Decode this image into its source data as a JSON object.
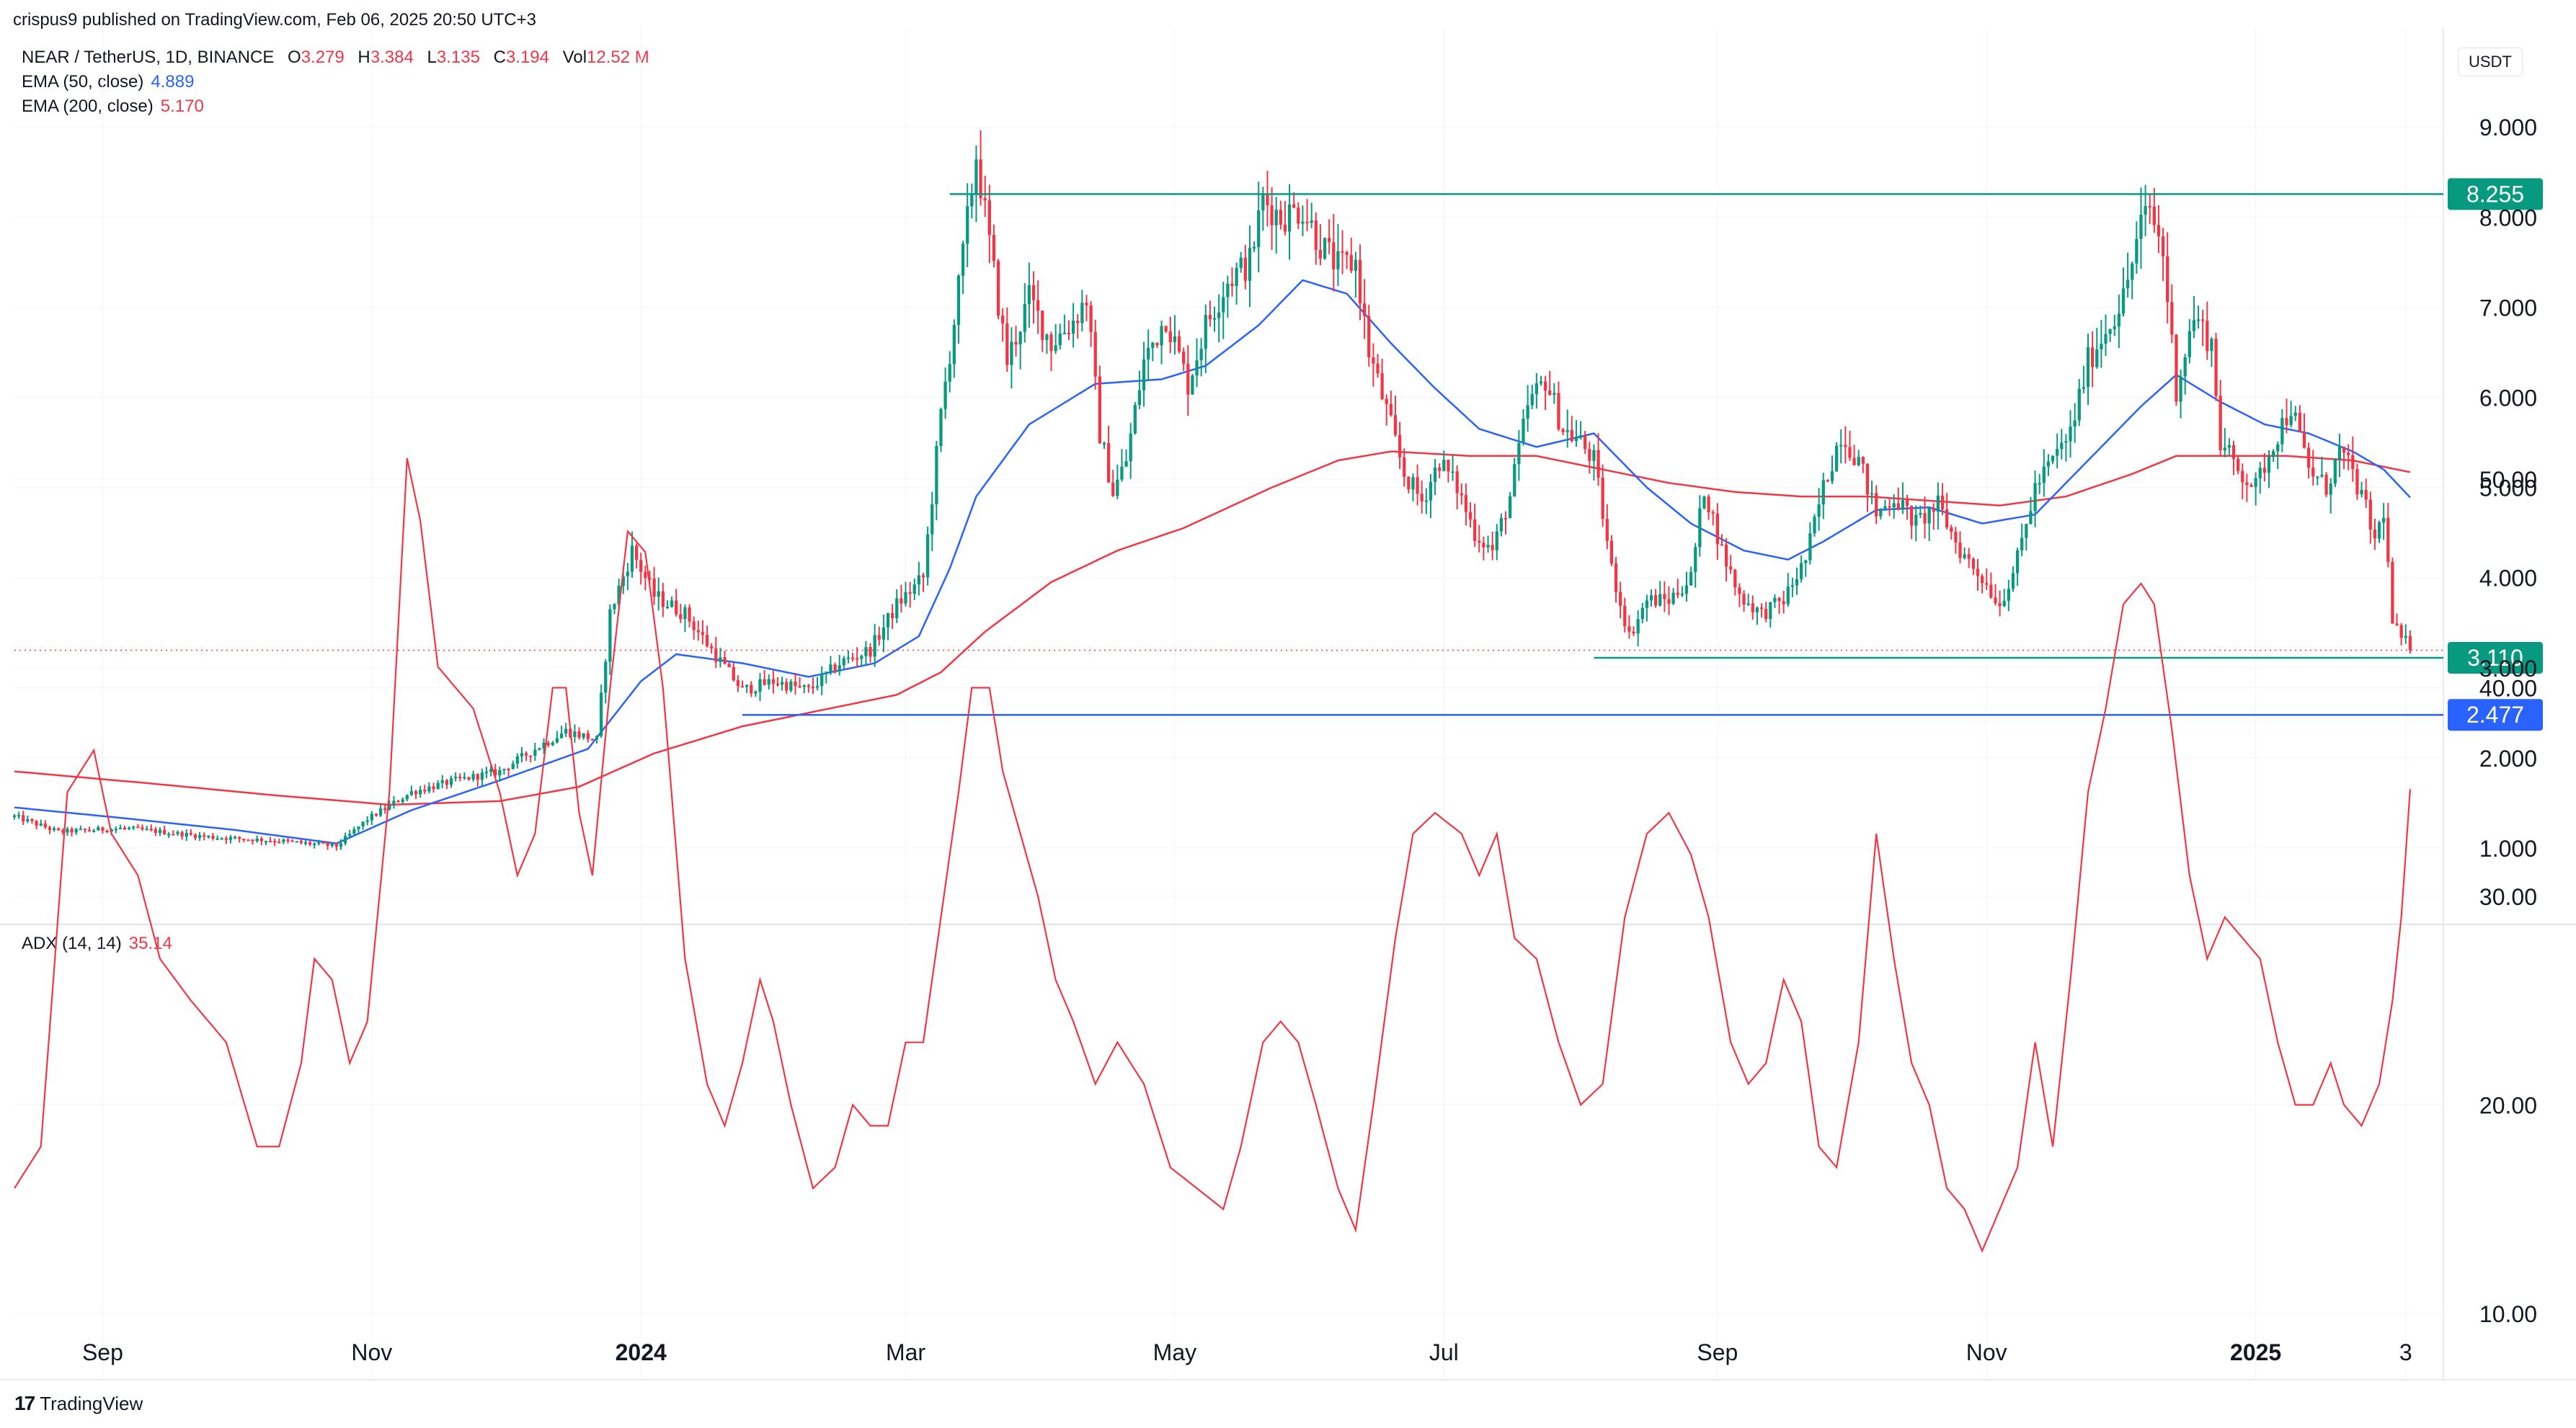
{
  "header": {
    "publisher": "crispus9 published on TradingView.com, Feb 06, 2025 20:50 UTC+3"
  },
  "legend": {
    "symbol": "NEAR / TetherUS, 1D, BINANCE",
    "open_label": "O",
    "open": "3.279",
    "high_label": "H",
    "high": "3.384",
    "low_label": "L",
    "low": "3.135",
    "close_label": "C",
    "close": "3.194",
    "vol_label": "Vol",
    "vol": "12.52 M",
    "ema50_name": "EMA (50, close)",
    "ema50_value": "4.889",
    "ema200_name": "EMA (200, close)",
    "ema200_value": "5.170",
    "adx_name": "ADX (14, 14)",
    "adx_value": "35.14"
  },
  "currency": "USDT",
  "footer": {
    "logo": "17",
    "brand": "TradingView"
  },
  "colors": {
    "up": "#089981",
    "down": "#f23645",
    "ema50": "#2962ff",
    "ema200": "#f23645",
    "adx": "#f23645",
    "resistance": "#089981",
    "support_blue": "#2962ff",
    "grid": "#f0f3fa"
  },
  "chart_data": [
    {
      "type": "candlestick",
      "title": "NEAR / TetherUS, 1D, BINANCE",
      "ylabel": "USDT",
      "ylim": [
        0.2,
        9.8
      ],
      "y_ticks": [
        {
          "value": 1.0,
          "label": "1.000"
        },
        {
          "value": 2.0,
          "label": "2.000"
        },
        {
          "value": 3.0,
          "label": "3.000"
        },
        {
          "value": 4.0,
          "label": "4.000"
        },
        {
          "value": 5.0,
          "label": "5.000"
        },
        {
          "value": 6.0,
          "label": "6.000"
        },
        {
          "value": 7.0,
          "label": "7.000"
        },
        {
          "value": 8.0,
          "label": "8.000"
        },
        {
          "value": 9.0,
          "label": "9.000"
        }
      ],
      "x_ticks": [
        {
          "day": 20,
          "label": "Sep"
        },
        {
          "day": 81,
          "label": "Nov"
        },
        {
          "day": 142,
          "label": "2024",
          "bold": true
        },
        {
          "day": 202,
          "label": "Mar"
        },
        {
          "day": 263,
          "label": "May"
        },
        {
          "day": 324,
          "label": "Jul"
        },
        {
          "day": 386,
          "label": "Sep"
        },
        {
          "day": 447,
          "label": "Nov"
        },
        {
          "day": 508,
          "label": "2025",
          "bold": true
        },
        {
          "day": 542,
          "label": "3"
        }
      ],
      "x_range_days": [
        0,
        544
      ],
      "price_anchors": [
        [
          0,
          1.35
        ],
        [
          10,
          1.18
        ],
        [
          25,
          1.22
        ],
        [
          45,
          1.12
        ],
        [
          60,
          1.08
        ],
        [
          73,
          1.02
        ],
        [
          80,
          1.32
        ],
        [
          90,
          1.62
        ],
        [
          100,
          1.75
        ],
        [
          110,
          1.85
        ],
        [
          118,
          2.1
        ],
        [
          125,
          2.3
        ],
        [
          132,
          2.2
        ],
        [
          135,
          3.6
        ],
        [
          140,
          4.3
        ],
        [
          145,
          3.8
        ],
        [
          152,
          3.6
        ],
        [
          158,
          3.2
        ],
        [
          165,
          2.75
        ],
        [
          172,
          2.85
        ],
        [
          180,
          2.75
        ],
        [
          187,
          3.05
        ],
        [
          194,
          3.2
        ],
        [
          200,
          3.7
        ],
        [
          206,
          4.0
        ],
        [
          210,
          5.8
        ],
        [
          214,
          7.2
        ],
        [
          218,
          8.7
        ],
        [
          221,
          7.7
        ],
        [
          225,
          6.4
        ],
        [
          230,
          7.1
        ],
        [
          235,
          6.6
        ],
        [
          240,
          6.85
        ],
        [
          243,
          7.1
        ],
        [
          246,
          5.6
        ],
        [
          249,
          4.95
        ],
        [
          252,
          5.3
        ],
        [
          256,
          6.4
        ],
        [
          261,
          6.9
        ],
        [
          266,
          6.15
        ],
        [
          270,
          6.8
        ],
        [
          275,
          7.3
        ],
        [
          280,
          7.5
        ],
        [
          283,
          8.2
        ],
        [
          287,
          8.0
        ],
        [
          292,
          8.1
        ],
        [
          296,
          7.7
        ],
        [
          300,
          7.45
        ],
        [
          304,
          7.5
        ],
        [
          307,
          6.5
        ],
        [
          311,
          5.85
        ],
        [
          315,
          5.15
        ],
        [
          319,
          4.85
        ],
        [
          323,
          5.3
        ],
        [
          327,
          5.0
        ],
        [
          331,
          4.5
        ],
        [
          335,
          4.3
        ],
        [
          339,
          4.9
        ],
        [
          343,
          5.9
        ],
        [
          347,
          6.2
        ],
        [
          351,
          5.65
        ],
        [
          355,
          5.5
        ],
        [
          358,
          5.3
        ],
        [
          362,
          4.1
        ],
        [
          366,
          3.35
        ],
        [
          370,
          3.75
        ],
        [
          375,
          3.75
        ],
        [
          380,
          4.0
        ],
        [
          383,
          5.0
        ],
        [
          387,
          4.3
        ],
        [
          391,
          3.8
        ],
        [
          396,
          3.6
        ],
        [
          401,
          3.75
        ],
        [
          406,
          4.2
        ],
        [
          410,
          5.0
        ],
        [
          414,
          5.6
        ],
        [
          418,
          5.3
        ],
        [
          422,
          4.7
        ],
        [
          426,
          4.9
        ],
        [
          431,
          4.6
        ],
        [
          436,
          4.8
        ],
        [
          441,
          4.3
        ],
        [
          446,
          4.0
        ],
        [
          450,
          3.7
        ],
        [
          454,
          4.2
        ],
        [
          458,
          5.0
        ],
        [
          462,
          5.3
        ],
        [
          466,
          5.6
        ],
        [
          470,
          6.4
        ],
        [
          474,
          6.75
        ],
        [
          478,
          7.1
        ],
        [
          482,
          7.9
        ],
        [
          484,
          8.1
        ],
        [
          487,
          7.6
        ],
        [
          490,
          6.1
        ],
        [
          494,
          6.9
        ],
        [
          498,
          6.6
        ],
        [
          500,
          5.5
        ],
        [
          504,
          5.2
        ],
        [
          508,
          5.0
        ],
        [
          512,
          5.5
        ],
        [
          516,
          5.9
        ],
        [
          520,
          5.2
        ],
        [
          524,
          5.0
        ],
        [
          527,
          5.4
        ],
        [
          530,
          5.15
        ],
        [
          533,
          4.75
        ],
        [
          535,
          4.4
        ],
        [
          537,
          4.75
        ],
        [
          539,
          3.5
        ],
        [
          541,
          3.3
        ],
        [
          542,
          3.279
        ],
        [
          543,
          3.194
        ]
      ],
      "last_close": 3.194,
      "ema50_anchors": [
        [
          0,
          1.45
        ],
        [
          25,
          1.33
        ],
        [
          50,
          1.2
        ],
        [
          73,
          1.05
        ],
        [
          90,
          1.42
        ],
        [
          110,
          1.75
        ],
        [
          130,
          2.1
        ],
        [
          142,
          2.85
        ],
        [
          150,
          3.15
        ],
        [
          165,
          3.05
        ],
        [
          180,
          2.9
        ],
        [
          195,
          3.05
        ],
        [
          205,
          3.35
        ],
        [
          212,
          4.1
        ],
        [
          218,
          4.9
        ],
        [
          230,
          5.7
        ],
        [
          245,
          6.15
        ],
        [
          260,
          6.2
        ],
        [
          270,
          6.35
        ],
        [
          282,
          6.8
        ],
        [
          292,
          7.3
        ],
        [
          302,
          7.15
        ],
        [
          312,
          6.6
        ],
        [
          322,
          6.1
        ],
        [
          332,
          5.65
        ],
        [
          345,
          5.45
        ],
        [
          358,
          5.6
        ],
        [
          370,
          5.0
        ],
        [
          380,
          4.6
        ],
        [
          392,
          4.3
        ],
        [
          402,
          4.2
        ],
        [
          410,
          4.4
        ],
        [
          422,
          4.75
        ],
        [
          434,
          4.78
        ],
        [
          446,
          4.6
        ],
        [
          458,
          4.7
        ],
        [
          470,
          5.3
        ],
        [
          482,
          5.9
        ],
        [
          490,
          6.25
        ],
        [
          500,
          5.95
        ],
        [
          510,
          5.7
        ],
        [
          520,
          5.6
        ],
        [
          530,
          5.4
        ],
        [
          537,
          5.2
        ],
        [
          543,
          4.889
        ]
      ],
      "ema200_anchors": [
        [
          0,
          1.85
        ],
        [
          30,
          1.72
        ],
        [
          60,
          1.58
        ],
        [
          85,
          1.48
        ],
        [
          110,
          1.52
        ],
        [
          128,
          1.68
        ],
        [
          145,
          2.05
        ],
        [
          165,
          2.35
        ],
        [
          185,
          2.55
        ],
        [
          200,
          2.7
        ],
        [
          210,
          2.95
        ],
        [
          220,
          3.4
        ],
        [
          235,
          3.95
        ],
        [
          250,
          4.3
        ],
        [
          265,
          4.55
        ],
        [
          285,
          5.0
        ],
        [
          300,
          5.3
        ],
        [
          312,
          5.4
        ],
        [
          330,
          5.35
        ],
        [
          345,
          5.35
        ],
        [
          360,
          5.2
        ],
        [
          375,
          5.05
        ],
        [
          390,
          4.95
        ],
        [
          405,
          4.9
        ],
        [
          420,
          4.9
        ],
        [
          435,
          4.85
        ],
        [
          450,
          4.8
        ],
        [
          465,
          4.9
        ],
        [
          480,
          5.15
        ],
        [
          490,
          5.35
        ],
        [
          500,
          5.35
        ],
        [
          515,
          5.35
        ],
        [
          530,
          5.3
        ],
        [
          543,
          5.17
        ]
      ],
      "lines": [
        {
          "name": "resistance",
          "value": 8.255,
          "label": "8.255",
          "from_day": 212,
          "to_day": 544
        },
        {
          "name": "support",
          "value": 3.11,
          "label": "3.110",
          "from_day": 358,
          "to_day": 544
        },
        {
          "name": "lower-support",
          "value": 2.477,
          "label": "2.477",
          "from_day": 165,
          "to_day": 544
        }
      ]
    },
    {
      "type": "line",
      "title": "ADX (14, 14)",
      "ylim": [
        6,
        58
      ],
      "y_ticks": [
        {
          "value": 10,
          "label": "10.00"
        },
        {
          "value": 20,
          "label": "20.00"
        },
        {
          "value": 30,
          "label": "30.00"
        },
        {
          "value": 40,
          "label": "40.00"
        },
        {
          "value": 50,
          "label": "50.00"
        }
      ],
      "adx_anchors": [
        [
          0,
          16
        ],
        [
          6,
          18
        ],
        [
          12,
          35
        ],
        [
          18,
          37
        ],
        [
          22,
          33
        ],
        [
          28,
          31
        ],
        [
          33,
          27
        ],
        [
          40,
          25
        ],
        [
          48,
          23
        ],
        [
          55,
          18
        ],
        [
          60,
          18
        ],
        [
          65,
          22
        ],
        [
          68,
          27
        ],
        [
          72,
          26
        ],
        [
          76,
          22
        ],
        [
          80,
          24
        ],
        [
          85,
          35
        ],
        [
          89,
          51
        ],
        [
          92,
          48
        ],
        [
          96,
          41
        ],
        [
          100,
          40
        ],
        [
          104,
          39
        ],
        [
          110,
          35
        ],
        [
          114,
          31
        ],
        [
          118,
          33
        ],
        [
          122,
          40
        ],
        [
          125,
          40
        ],
        [
          128,
          34
        ],
        [
          131,
          31
        ],
        [
          135,
          40
        ],
        [
          139,
          47.5
        ],
        [
          143,
          46.5
        ],
        [
          147,
          40
        ],
        [
          152,
          27
        ],
        [
          157,
          21
        ],
        [
          161,
          19
        ],
        [
          165,
          22
        ],
        [
          169,
          26
        ],
        [
          172,
          24
        ],
        [
          176,
          20
        ],
        [
          181,
          16
        ],
        [
          186,
          17
        ],
        [
          190,
          20
        ],
        [
          194,
          19
        ],
        [
          198,
          19
        ],
        [
          202,
          23
        ],
        [
          206,
          23
        ],
        [
          210,
          29
        ],
        [
          214,
          35
        ],
        [
          217,
          40
        ],
        [
          221,
          40
        ],
        [
          224,
          36
        ],
        [
          228,
          33
        ],
        [
          232,
          30
        ],
        [
          236,
          26
        ],
        [
          240,
          24
        ],
        [
          245,
          21
        ],
        [
          250,
          23
        ],
        [
          256,
          21
        ],
        [
          262,
          17
        ],
        [
          268,
          16
        ],
        [
          274,
          15
        ],
        [
          278,
          18
        ],
        [
          283,
          23
        ],
        [
          287,
          24
        ],
        [
          291,
          23
        ],
        [
          295,
          20
        ],
        [
          300,
          16
        ],
        [
          304,
          14
        ],
        [
          308,
          20
        ],
        [
          313,
          28
        ],
        [
          317,
          33
        ],
        [
          322,
          34
        ],
        [
          328,
          33
        ],
        [
          332,
          31
        ],
        [
          336,
          33
        ],
        [
          340,
          28
        ],
        [
          345,
          27
        ],
        [
          350,
          23
        ],
        [
          355,
          20
        ],
        [
          360,
          21
        ],
        [
          365,
          29
        ],
        [
          370,
          33
        ],
        [
          375,
          34
        ],
        [
          380,
          32
        ],
        [
          384,
          29
        ],
        [
          389,
          23
        ],
        [
          393,
          21
        ],
        [
          397,
          22
        ],
        [
          401,
          26
        ],
        [
          405,
          24
        ],
        [
          409,
          18
        ],
        [
          413,
          17
        ],
        [
          418,
          23
        ],
        [
          422,
          33
        ],
        [
          426,
          27
        ],
        [
          430,
          22
        ],
        [
          434,
          20
        ],
        [
          438,
          16
        ],
        [
          442,
          15
        ],
        [
          446,
          13
        ],
        [
          450,
          15
        ],
        [
          454,
          17
        ],
        [
          458,
          23
        ],
        [
          462,
          18
        ],
        [
          466,
          26
        ],
        [
          470,
          35
        ],
        [
          474,
          39
        ],
        [
          478,
          44
        ],
        [
          482,
          45
        ],
        [
          485,
          44
        ],
        [
          489,
          38
        ],
        [
          493,
          31
        ],
        [
          497,
          27
        ],
        [
          501,
          29
        ],
        [
          505,
          28
        ],
        [
          509,
          27
        ],
        [
          513,
          23
        ],
        [
          517,
          20
        ],
        [
          521,
          20
        ],
        [
          525,
          22
        ],
        [
          528,
          20
        ],
        [
          532,
          19
        ],
        [
          536,
          21
        ],
        [
          539,
          25
        ],
        [
          541,
          29
        ],
        [
          543,
          35.14
        ]
      ]
    }
  ]
}
